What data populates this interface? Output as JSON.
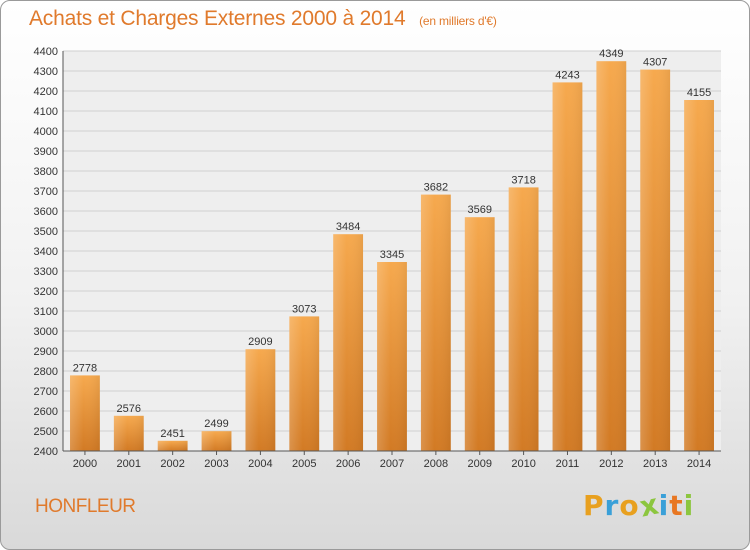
{
  "header": {
    "title": "Achats et Charges Externes 2000 à 2014",
    "subtitle": "(en milliers d'€)"
  },
  "footer": {
    "city": "HONFLEUR",
    "brand": "Proxiti",
    "brand_letters": [
      "P",
      "r",
      "o",
      "x",
      "i",
      "t",
      "i"
    ],
    "brand_colors": [
      "#e8a01f",
      "#3aa0d8",
      "#e8a01f",
      "#8cc63f",
      "#3aa0d8",
      "#e87722",
      "#8cc63f"
    ]
  },
  "colors": {
    "bar_top": "#f6a94e",
    "bar_bottom": "#d27a24",
    "title": "#e07a2c",
    "grid": "#d0d0d0"
  },
  "chart_data": {
    "type": "bar",
    "title": "Achats et Charges Externes 2000 à 2014",
    "subtitle": "(en milliers d'€)",
    "categories": [
      "2000",
      "2001",
      "2002",
      "2003",
      "2004",
      "2005",
      "2006",
      "2007",
      "2008",
      "2009",
      "2010",
      "2011",
      "2012",
      "2013",
      "2014"
    ],
    "values": [
      2778,
      2576,
      2451,
      2499,
      2909,
      3073,
      3484,
      3345,
      3682,
      3569,
      3718,
      4243,
      4349,
      4307,
      4155
    ],
    "ylim": [
      2400,
      4400
    ],
    "yticks": [
      2400,
      2500,
      2600,
      2700,
      2800,
      2900,
      3000,
      3100,
      3200,
      3300,
      3400,
      3500,
      3600,
      3700,
      3800,
      3900,
      4000,
      4100,
      4200,
      4300,
      4400
    ],
    "grid": true,
    "legend": "none"
  }
}
